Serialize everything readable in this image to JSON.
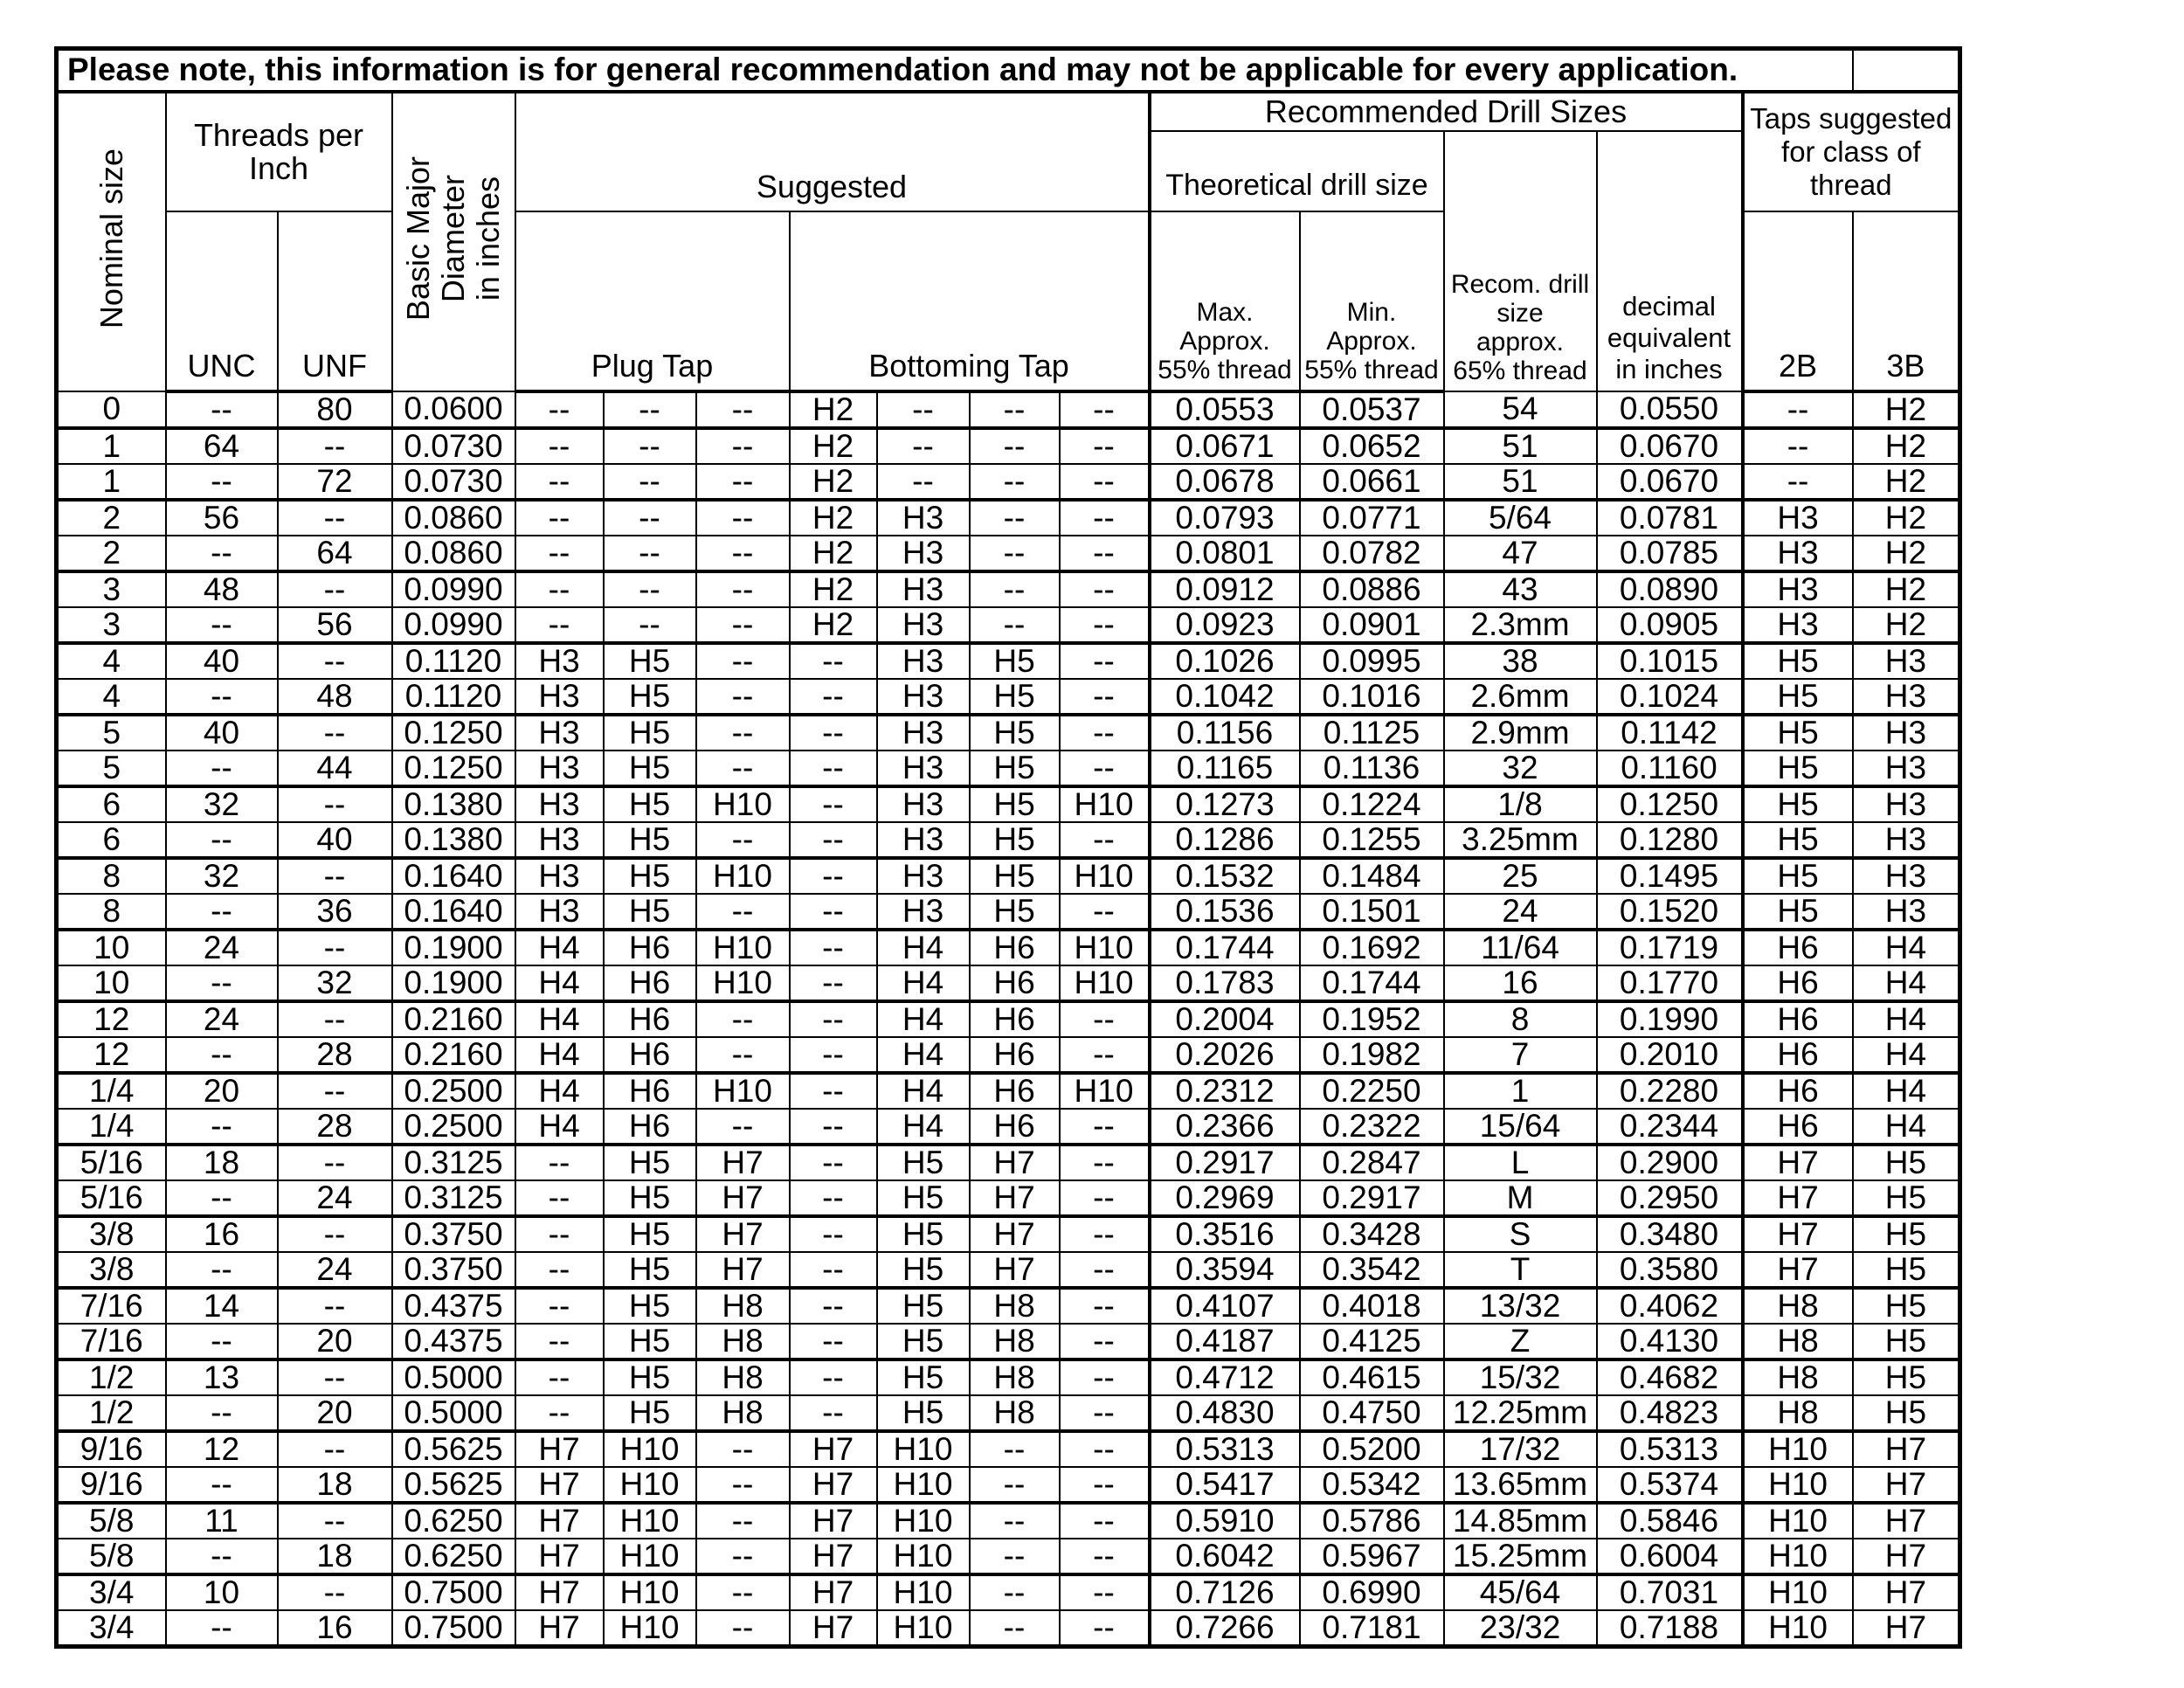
{
  "title": "Please note, this information is for general recommendation and may not be applicable for every application.",
  "headers": {
    "nominal_size": "Nominal size",
    "threads_per_inch": "Threads per\nInch",
    "unc": "UNC",
    "unf": "UNF",
    "basic_major_diameter": "Basic Major\nDiameter\nin inches",
    "suggested": "Suggested",
    "plug_tap": "Plug Tap",
    "bottoming_tap": "Bottoming Tap",
    "recommended_drill_sizes": "Recommended Drill Sizes",
    "theoretical_drill_size": "Theoretical drill size",
    "max_approx": "Max.\nApprox.\n55% thread",
    "min_approx": "Min.\nApprox.\n55% thread",
    "recom_drill": "Recom. drill\nsize\napprox.\n65% thread",
    "decimal_equivalent": "decimal\nequivalent\nin inches",
    "taps_suggested": "Taps suggested\nfor class of\nthread",
    "class_2b": "2B",
    "class_3b": "3B"
  },
  "rows": [
    [
      "0",
      "--",
      "80",
      "0.0600",
      "--",
      "--",
      "--",
      "H2",
      "--",
      "--",
      "--",
      "0.0553",
      "0.0537",
      "54",
      "0.0550",
      "--",
      "H2"
    ],
    [
      "1",
      "64",
      "--",
      "0.0730",
      "--",
      "--",
      "--",
      "H2",
      "--",
      "--",
      "--",
      "0.0671",
      "0.0652",
      "51",
      "0.0670",
      "--",
      "H2"
    ],
    [
      "1",
      "--",
      "72",
      "0.0730",
      "--",
      "--",
      "--",
      "H2",
      "--",
      "--",
      "--",
      "0.0678",
      "0.0661",
      "51",
      "0.0670",
      "--",
      "H2"
    ],
    [
      "2",
      "56",
      "--",
      "0.0860",
      "--",
      "--",
      "--",
      "H2",
      "H3",
      "--",
      "--",
      "0.0793",
      "0.0771",
      "5/64",
      "0.0781",
      "H3",
      "H2"
    ],
    [
      "2",
      "--",
      "64",
      "0.0860",
      "--",
      "--",
      "--",
      "H2",
      "H3",
      "--",
      "--",
      "0.0801",
      "0.0782",
      "47",
      "0.0785",
      "H3",
      "H2"
    ],
    [
      "3",
      "48",
      "--",
      "0.0990",
      "--",
      "--",
      "--",
      "H2",
      "H3",
      "--",
      "--",
      "0.0912",
      "0.0886",
      "43",
      "0.0890",
      "H3",
      "H2"
    ],
    [
      "3",
      "--",
      "56",
      "0.0990",
      "--",
      "--",
      "--",
      "H2",
      "H3",
      "--",
      "--",
      "0.0923",
      "0.0901",
      "2.3mm",
      "0.0905",
      "H3",
      "H2"
    ],
    [
      "4",
      "40",
      "--",
      "0.1120",
      "H3",
      "H5",
      "--",
      "--",
      "H3",
      "H5",
      "--",
      "0.1026",
      "0.0995",
      "38",
      "0.1015",
      "H5",
      "H3"
    ],
    [
      "4",
      "--",
      "48",
      "0.1120",
      "H3",
      "H5",
      "--",
      "--",
      "H3",
      "H5",
      "--",
      "0.1042",
      "0.1016",
      "2.6mm",
      "0.1024",
      "H5",
      "H3"
    ],
    [
      "5",
      "40",
      "--",
      "0.1250",
      "H3",
      "H5",
      "--",
      "--",
      "H3",
      "H5",
      "--",
      "0.1156",
      "0.1125",
      "2.9mm",
      "0.1142",
      "H5",
      "H3"
    ],
    [
      "5",
      "--",
      "44",
      "0.1250",
      "H3",
      "H5",
      "--",
      "--",
      "H3",
      "H5",
      "--",
      "0.1165",
      "0.1136",
      "32",
      "0.1160",
      "H5",
      "H3"
    ],
    [
      "6",
      "32",
      "--",
      "0.1380",
      "H3",
      "H5",
      "H10",
      "--",
      "H3",
      "H5",
      "H10",
      "0.1273",
      "0.1224",
      "1/8",
      "0.1250",
      "H5",
      "H3"
    ],
    [
      "6",
      "--",
      "40",
      "0.1380",
      "H3",
      "H5",
      "--",
      "--",
      "H3",
      "H5",
      "--",
      "0.1286",
      "0.1255",
      "3.25mm",
      "0.1280",
      "H5",
      "H3"
    ],
    [
      "8",
      "32",
      "--",
      "0.1640",
      "H3",
      "H5",
      "H10",
      "--",
      "H3",
      "H5",
      "H10",
      "0.1532",
      "0.1484",
      "25",
      "0.1495",
      "H5",
      "H3"
    ],
    [
      "8",
      "--",
      "36",
      "0.1640",
      "H3",
      "H5",
      "--",
      "--",
      "H3",
      "H5",
      "--",
      "0.1536",
      "0.1501",
      "24",
      "0.1520",
      "H5",
      "H3"
    ],
    [
      "10",
      "24",
      "--",
      "0.1900",
      "H4",
      "H6",
      "H10",
      "--",
      "H4",
      "H6",
      "H10",
      "0.1744",
      "0.1692",
      "11/64",
      "0.1719",
      "H6",
      "H4"
    ],
    [
      "10",
      "--",
      "32",
      "0.1900",
      "H4",
      "H6",
      "H10",
      "--",
      "H4",
      "H6",
      "H10",
      "0.1783",
      "0.1744",
      "16",
      "0.1770",
      "H6",
      "H4"
    ],
    [
      "12",
      "24",
      "--",
      "0.2160",
      "H4",
      "H6",
      "--",
      "--",
      "H4",
      "H6",
      "--",
      "0.2004",
      "0.1952",
      "8",
      "0.1990",
      "H6",
      "H4"
    ],
    [
      "12",
      "--",
      "28",
      "0.2160",
      "H4",
      "H6",
      "--",
      "--",
      "H4",
      "H6",
      "--",
      "0.2026",
      "0.1982",
      "7",
      "0.2010",
      "H6",
      "H4"
    ],
    [
      "1/4",
      "20",
      "--",
      "0.2500",
      "H4",
      "H6",
      "H10",
      "--",
      "H4",
      "H6",
      "H10",
      "0.2312",
      "0.2250",
      "1",
      "0.2280",
      "H6",
      "H4"
    ],
    [
      "1/4",
      "--",
      "28",
      "0.2500",
      "H4",
      "H6",
      "--",
      "--",
      "H4",
      "H6",
      "--",
      "0.2366",
      "0.2322",
      "15/64",
      "0.2344",
      "H6",
      "H4"
    ],
    [
      "5/16",
      "18",
      "--",
      "0.3125",
      "--",
      "H5",
      "H7",
      "--",
      "H5",
      "H7",
      "--",
      "0.2917",
      "0.2847",
      "L",
      "0.2900",
      "H7",
      "H5"
    ],
    [
      "5/16",
      "--",
      "24",
      "0.3125",
      "--",
      "H5",
      "H7",
      "--",
      "H5",
      "H7",
      "--",
      "0.2969",
      "0.2917",
      "M",
      "0.2950",
      "H7",
      "H5"
    ],
    [
      "3/8",
      "16",
      "--",
      "0.3750",
      "--",
      "H5",
      "H7",
      "--",
      "H5",
      "H7",
      "--",
      "0.3516",
      "0.3428",
      "S",
      "0.3480",
      "H7",
      "H5"
    ],
    [
      "3/8",
      "--",
      "24",
      "0.3750",
      "--",
      "H5",
      "H7",
      "--",
      "H5",
      "H7",
      "--",
      "0.3594",
      "0.3542",
      "T",
      "0.3580",
      "H7",
      "H5"
    ],
    [
      "7/16",
      "14",
      "--",
      "0.4375",
      "--",
      "H5",
      "H8",
      "--",
      "H5",
      "H8",
      "--",
      "0.4107",
      "0.4018",
      "13/32",
      "0.4062",
      "H8",
      "H5"
    ],
    [
      "7/16",
      "--",
      "20",
      "0.4375",
      "--",
      "H5",
      "H8",
      "--",
      "H5",
      "H8",
      "--",
      "0.4187",
      "0.4125",
      "Z",
      "0.4130",
      "H8",
      "H5"
    ],
    [
      "1/2",
      "13",
      "--",
      "0.5000",
      "--",
      "H5",
      "H8",
      "--",
      "H5",
      "H8",
      "--",
      "0.4712",
      "0.4615",
      "15/32",
      "0.4682",
      "H8",
      "H5"
    ],
    [
      "1/2",
      "--",
      "20",
      "0.5000",
      "--",
      "H5",
      "H8",
      "--",
      "H5",
      "H8",
      "--",
      "0.4830",
      "0.4750",
      "12.25mm",
      "0.4823",
      "H8",
      "H5"
    ],
    [
      "9/16",
      "12",
      "--",
      "0.5625",
      "H7",
      "H10",
      "--",
      "H7",
      "H10",
      "--",
      "--",
      "0.5313",
      "0.5200",
      "17/32",
      "0.5313",
      "H10",
      "H7"
    ],
    [
      "9/16",
      "--",
      "18",
      "0.5625",
      "H7",
      "H10",
      "--",
      "H7",
      "H10",
      "--",
      "--",
      "0.5417",
      "0.5342",
      "13.65mm",
      "0.5374",
      "H10",
      "H7"
    ],
    [
      "5/8",
      "11",
      "--",
      "0.6250",
      "H7",
      "H10",
      "--",
      "H7",
      "H10",
      "--",
      "--",
      "0.5910",
      "0.5786",
      "14.85mm",
      "0.5846",
      "H10",
      "H7"
    ],
    [
      "5/8",
      "--",
      "18",
      "0.6250",
      "H7",
      "H10",
      "--",
      "H7",
      "H10",
      "--",
      "--",
      "0.6042",
      "0.5967",
      "15.25mm",
      "0.6004",
      "H10",
      "H7"
    ],
    [
      "3/4",
      "10",
      "--",
      "0.7500",
      "H7",
      "H10",
      "--",
      "H7",
      "H10",
      "--",
      "--",
      "0.7126",
      "0.6990",
      "45/64",
      "0.7031",
      "H10",
      "H7"
    ],
    [
      "3/4",
      "--",
      "16",
      "0.7500",
      "H7",
      "H10",
      "--",
      "H7",
      "H10",
      "--",
      "--",
      "0.7266",
      "0.7181",
      "23/32",
      "0.7188",
      "H10",
      "H7"
    ]
  ]
}
